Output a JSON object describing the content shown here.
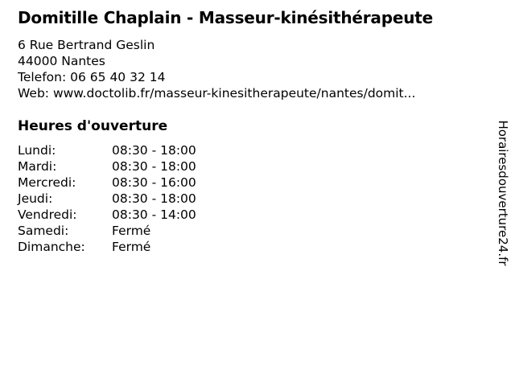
{
  "page": {
    "background_color": "#ffffff",
    "text_color": "#000000"
  },
  "business": {
    "title": "Domitille Chaplain - Masseur-kinésithérapeute",
    "address_line1": "6 Rue Bertrand Geslin",
    "address_line2": "44000 Nantes",
    "phone_label": "Telefon:",
    "phone_value": "06 65 40 32 14",
    "web_label": "Web:",
    "web_value": "www.doctolib.fr/masseur-kinesitherapeute/nantes/domit..."
  },
  "hours": {
    "heading": "Heures d'ouverture",
    "days": [
      {
        "label": "Lundi:",
        "time": "08:30 - 18:00"
      },
      {
        "label": "Mardi:",
        "time": "08:30 - 18:00"
      },
      {
        "label": "Mercredi:",
        "time": "08:30 - 16:00"
      },
      {
        "label": "Jeudi:",
        "time": "08:30 - 18:00"
      },
      {
        "label": "Vendredi:",
        "time": "08:30 - 14:00"
      },
      {
        "label": "Samedi:",
        "time": "Fermé"
      },
      {
        "label": "Dimanche:",
        "time": "Fermé"
      }
    ]
  },
  "watermark": {
    "text": "Horairesdouverture24.fr"
  }
}
